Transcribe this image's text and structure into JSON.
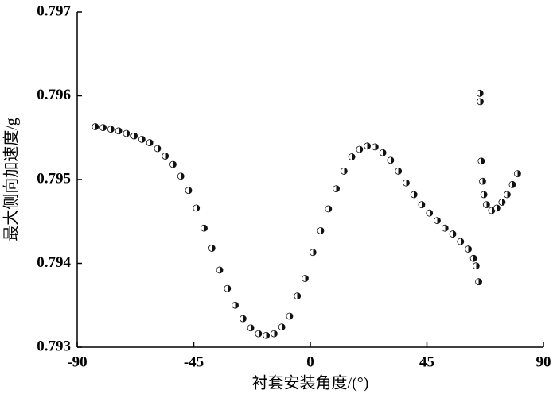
{
  "chart_data": {
    "type": "scatter",
    "xlabel": "衬套安装角度/(°)",
    "ylabel": "最大侧向加速度/g",
    "xlim": [
      -90,
      90
    ],
    "ylim": [
      0.793,
      0.797
    ],
    "xticks": [
      -90,
      -45,
      0,
      45,
      90
    ],
    "yticks": [
      0.793,
      0.794,
      0.795,
      0.796,
      0.797
    ],
    "color": "#111111",
    "x": [
      -83,
      -80,
      -77,
      -74,
      -71,
      -68,
      -65,
      -62,
      -59,
      -56,
      -53,
      -50,
      -47,
      -44,
      -41,
      -38,
      -35,
      -32,
      -29,
      -26,
      -23,
      -20,
      -17,
      -14,
      -11,
      -8,
      -5,
      -2,
      1,
      4,
      7,
      10,
      13,
      16,
      19,
      22,
      25,
      28,
      31,
      34,
      37,
      40,
      43,
      46,
      49,
      52,
      55,
      58,
      61,
      63,
      64,
      65,
      65.5,
      65.6,
      66,
      66.5,
      67,
      68,
      70,
      72,
      74,
      76,
      78,
      80
    ],
    "values": [
      0.79563,
      0.79562,
      0.7956,
      0.79558,
      0.79555,
      0.79552,
      0.79548,
      0.79544,
      0.79537,
      0.79528,
      0.79518,
      0.79504,
      0.79487,
      0.79466,
      0.79442,
      0.79418,
      0.79392,
      0.7937,
      0.7935,
      0.79334,
      0.79323,
      0.79316,
      0.79314,
      0.79316,
      0.79324,
      0.79337,
      0.79361,
      0.79382,
      0.79413,
      0.79439,
      0.79465,
      0.79489,
      0.7951,
      0.79527,
      0.79536,
      0.7954,
      0.79539,
      0.79532,
      0.79523,
      0.7951,
      0.79496,
      0.79482,
      0.7947,
      0.7946,
      0.79451,
      0.79442,
      0.79435,
      0.79426,
      0.79417,
      0.79406,
      0.79397,
      0.79378,
      0.79603,
      0.79593,
      0.79522,
      0.79498,
      0.79482,
      0.7947,
      0.79463,
      0.79466,
      0.79473,
      0.79482,
      0.79494,
      0.79507
    ]
  }
}
